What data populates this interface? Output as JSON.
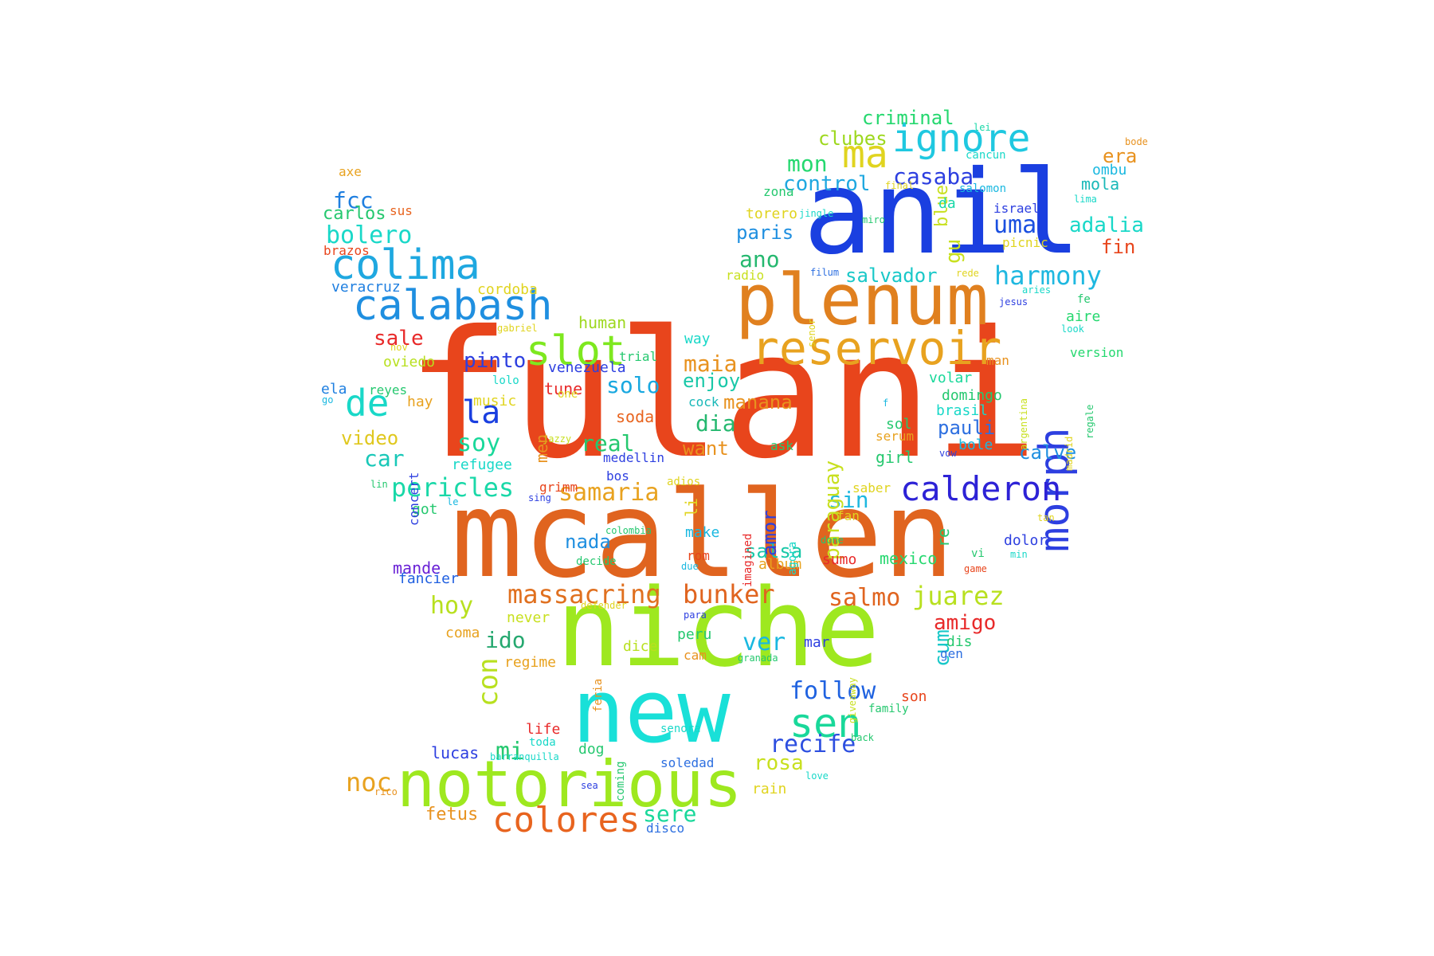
{
  "palette": [
    "#e8451c",
    "#e0641f",
    "#1a3fe0",
    "#19e0d8",
    "#9ee81f",
    "#e8921f",
    "#1fc2e0",
    "#2d22d6",
    "#25d86f",
    "#e0c81f",
    "#e82a2a",
    "#8c1fe0"
  ],
  "words": [
    {
      "text": "fulani",
      "color": "#e8451c"
    },
    {
      "text": "mcallen",
      "color": "#e0641f"
    },
    {
      "text": "anil",
      "color": "#1a3fe0"
    },
    {
      "text": "niche",
      "color": "#9ee81f"
    },
    {
      "text": "new",
      "color": "#19e0d8"
    },
    {
      "text": "plenum",
      "color": "#e0801f"
    },
    {
      "text": "notorious",
      "color": "#9ee81f"
    },
    {
      "text": "reservoir",
      "color": "#e8a21f"
    },
    {
      "text": "calabash",
      "color": "#1f8fe0"
    },
    {
      "text": "colima",
      "color": "#1fa8e0"
    },
    {
      "text": "morph",
      "color": "#2d3fe0"
    },
    {
      "text": "slot",
      "color": "#7ee81f"
    },
    {
      "text": "ignore",
      "color": "#1fc8e0"
    },
    {
      "text": "calderon",
      "color": "#2d22d6"
    },
    {
      "text": "ma",
      "color": "#e0d41f"
    },
    {
      "text": "de",
      "color": "#19d8c8"
    },
    {
      "text": "colores",
      "color": "#e8641f"
    },
    {
      "text": "sen",
      "color": "#19d89a"
    },
    {
      "text": "la",
      "color": "#1a3fe0"
    },
    {
      "text": "harmony",
      "color": "#1fb8e0"
    },
    {
      "text": "massacring",
      "color": "#e0701f"
    },
    {
      "text": "bunker",
      "color": "#e0641f"
    },
    {
      "text": "juarez",
      "color": "#b8e01f"
    },
    {
      "text": "con",
      "color": "#b8e01f"
    },
    {
      "text": "follow",
      "color": "#1f62e0"
    },
    {
      "text": "recife",
      "color": "#2d4fe0"
    },
    {
      "text": "bolero",
      "color": "#19d8c8"
    },
    {
      "text": "pericles",
      "color": "#19d8a8"
    },
    {
      "text": "salmo",
      "color": "#e0641f"
    },
    {
      "text": "uma",
      "color": "#1a4fe0"
    },
    {
      "text": "adalia",
      "color": "#19d8c8"
    },
    {
      "text": "samaria",
      "color": "#e8a21f"
    },
    {
      "text": "soy",
      "color": "#19d89a"
    },
    {
      "text": "ver",
      "color": "#19b8e0"
    },
    {
      "text": "casaba",
      "color": "#2d3fe0"
    },
    {
      "text": "hoy",
      "color": "#b8e01f"
    },
    {
      "text": "noc",
      "color": "#e8a21f"
    },
    {
      "text": "mi",
      "color": "#25c86f"
    },
    {
      "text": "sere",
      "color": "#19d89a"
    },
    {
      "text": "rosa",
      "color": "#c8e01f"
    },
    {
      "text": "amigo",
      "color": "#e82a2a"
    },
    {
      "text": "real",
      "color": "#25c86f"
    },
    {
      "text": "dia",
      "color": "#25b86f"
    },
    {
      "text": "maia",
      "color": "#e8921f"
    },
    {
      "text": "solo",
      "color": "#19a8e0"
    },
    {
      "text": "pinto",
      "color": "#2d3fe0"
    },
    {
      "text": "ido",
      "color": "#25a86f"
    },
    {
      "text": "car",
      "color": "#19c8b8"
    },
    {
      "text": "video",
      "color": "#e0c81f"
    },
    {
      "text": "fcc",
      "color": "#1f7fe0"
    },
    {
      "text": "sale",
      "color": "#e82a2a"
    },
    {
      "text": "fetus",
      "color": "#e8921f"
    },
    {
      "text": "lucas",
      "color": "#2d3fe0"
    },
    {
      "text": "mon",
      "color": "#25d86f"
    },
    {
      "text": "control",
      "color": "#1fa8e0"
    },
    {
      "text": "criminal",
      "color": "#25d86f"
    },
    {
      "text": "clubes",
      "color": "#9ed81f"
    },
    {
      "text": "salvador",
      "color": "#19c8c8"
    },
    {
      "text": "paris",
      "color": "#1f8fe0"
    },
    {
      "text": "ano",
      "color": "#25b86f"
    },
    {
      "text": "enjoy",
      "color": "#19c8a8"
    },
    {
      "text": "manana",
      "color": "#e8921f"
    },
    {
      "text": "want",
      "color": "#e8921f"
    },
    {
      "text": "pauli",
      "color": "#2d6fe0"
    },
    {
      "text": "calve",
      "color": "#1f8fe0"
    },
    {
      "text": "sin",
      "color": "#1fb8e0"
    },
    {
      "text": "salsa",
      "color": "#19c8a8"
    },
    {
      "text": "nada",
      "color": "#1f8fe0"
    },
    {
      "text": "cum",
      "color": "#19c8c8"
    },
    {
      "text": "era",
      "color": "#e8921f"
    },
    {
      "text": "fin",
      "color": "#e8451c"
    },
    {
      "text": "carlos",
      "color": "#25c86f"
    },
    {
      "text": "blue",
      "color": "#c8e01f"
    },
    {
      "text": "gu",
      "color": "#c8e01f"
    },
    {
      "text": "paraguay",
      "color": "#c8e01f"
    },
    {
      "text": "amor",
      "color": "#2d3fe0"
    },
    {
      "text": "human",
      "color": "#9ed81f"
    },
    {
      "text": "mola",
      "color": "#19b8b8"
    },
    {
      "text": "ombu",
      "color": "#19b8e0"
    },
    {
      "text": "aire",
      "color": "#25d86f"
    },
    {
      "text": "girl",
      "color": "#25c86f"
    },
    {
      "text": "sol",
      "color": "#25c86f"
    },
    {
      "text": "brasil",
      "color": "#19d8c8"
    },
    {
      "text": "domingo",
      "color": "#25c86f"
    },
    {
      "text": "volar",
      "color": "#19d89a"
    },
    {
      "text": "dolor",
      "color": "#2d3fe0"
    },
    {
      "text": "mexico",
      "color": "#25d86f"
    },
    {
      "text": "make",
      "color": "#19b8e0"
    },
    {
      "text": "album",
      "color": "#e8a21f"
    },
    {
      "text": "sumo",
      "color": "#e82a2a"
    },
    {
      "text": "mande",
      "color": "#6a22d6"
    },
    {
      "text": "fancier",
      "color": "#1f5fe0"
    },
    {
      "text": "got",
      "color": "#25c86f"
    },
    {
      "text": "refugee",
      "color": "#19d8c8"
    },
    {
      "text": "music",
      "color": "#e0d41f"
    },
    {
      "text": "hay",
      "color": "#e8a21f"
    },
    {
      "text": "venezuela",
      "color": "#2d3fe0"
    },
    {
      "text": "tune",
      "color": "#e82a2a"
    },
    {
      "text": "soda",
      "color": "#e8641f"
    },
    {
      "text": "oviedo",
      "color": "#b8e01f"
    },
    {
      "text": "reyes",
      "color": "#25c86f"
    },
    {
      "text": "ela",
      "color": "#1f7fe0"
    },
    {
      "text": "veracruz",
      "color": "#1f7fe0"
    },
    {
      "text": "brazos",
      "color": "#e8451c"
    },
    {
      "text": "sus",
      "color": "#e8641f"
    },
    {
      "text": "axe",
      "color": "#e8a21f"
    },
    {
      "text": "cordoba",
      "color": "#e0d41f"
    },
    {
      "text": "regime",
      "color": "#e8a21f"
    },
    {
      "text": "never",
      "color": "#c8e01f"
    },
    {
      "text": "coma",
      "color": "#e8a21f"
    },
    {
      "text": "dice",
      "color": "#b8e01f"
    },
    {
      "text": "cam",
      "color": "#e8921f"
    },
    {
      "text": "peru",
      "color": "#25c86f"
    },
    {
      "text": "mar",
      "color": "#2d3fe0"
    },
    {
      "text": "dis",
      "color": "#25c86f"
    },
    {
      "text": "gen",
      "color": "#2d6fe0"
    },
    {
      "text": "son",
      "color": "#e8451c"
    },
    {
      "text": "life",
      "color": "#e82a2a"
    },
    {
      "text": "dog",
      "color": "#25c86f"
    },
    {
      "text": "soledad",
      "color": "#2d6fe0"
    },
    {
      "text": "rain",
      "color": "#e0d41f"
    },
    {
      "text": "disco",
      "color": "#2d6fe0"
    },
    {
      "text": "bole",
      "color": "#19b8e0"
    },
    {
      "text": "torero",
      "color": "#e0d41f"
    },
    {
      "text": "zona",
      "color": "#25c86f"
    },
    {
      "text": "israel",
      "color": "#2d3fe0"
    },
    {
      "text": "picnic",
      "color": "#e0d41f"
    },
    {
      "text": "salomon",
      "color": "#19b8e0"
    },
    {
      "text": "cancun",
      "color": "#19d8c8"
    },
    {
      "text": "da",
      "color": "#19d8a8"
    },
    {
      "text": "radio",
      "color": "#c8e01f"
    },
    {
      "text": "version",
      "color": "#25d86f"
    },
    {
      "text": "way",
      "color": "#19d8c8"
    },
    {
      "text": "trial",
      "color": "#25c86f"
    },
    {
      "text": "cock",
      "color": "#19b8b8"
    },
    {
      "text": "serum",
      "color": "#e8a21f"
    },
    {
      "text": "saber",
      "color": "#e0d41f"
    },
    {
      "text": "fan",
      "color": "#e0d41f"
    },
    {
      "text": "rom",
      "color": "#e8451c"
    },
    {
      "text": "bos",
      "color": "#2d3fe0"
    },
    {
      "text": "medellin",
      "color": "#2d3fe0"
    },
    {
      "text": "ask",
      "color": "#25c86f"
    },
    {
      "text": "grimm",
      "color": "#e8451c"
    },
    {
      "text": "sing",
      "color": "#2d3fe0"
    },
    {
      "text": "lolo",
      "color": "#19d8c8"
    },
    {
      "text": "man",
      "color": "#e8921f"
    },
    {
      "text": "fe",
      "color": "#25c86f"
    },
    {
      "text": "lima",
      "color": "#19d8c8"
    },
    {
      "text": "jesus",
      "color": "#2d3fe0"
    },
    {
      "text": "family",
      "color": "#25c86f"
    },
    {
      "text": "senora",
      "color": "#19d8c8"
    },
    {
      "text": "toda",
      "color": "#19d8c8"
    },
    {
      "text": "barranquilla",
      "color": "#19d8c8"
    },
    {
      "text": "sea",
      "color": "#2d3fe0"
    },
    {
      "text": "rico",
      "color": "#e8921f"
    },
    {
      "text": "granada",
      "color": "#25c86f"
    },
    {
      "text": "decide",
      "color": "#25c86f"
    },
    {
      "text": "colombia",
      "color": "#25c86f"
    },
    {
      "text": "adios",
      "color": "#e0d41f"
    },
    {
      "text": "one",
      "color": "#e0d41f"
    },
    {
      "text": "jazzy",
      "color": "#c8e01f"
    },
    {
      "text": "vi",
      "color": "#25c86f"
    },
    {
      "text": "game",
      "color": "#e8451c"
    },
    {
      "text": "min",
      "color": "#19d8c8"
    },
    {
      "text": "tan",
      "color": "#e0d41f"
    },
    {
      "text": "done",
      "color": "#25c86f"
    },
    {
      "text": "due",
      "color": "#19b8e0"
    },
    {
      "text": "para",
      "color": "#2d3fe0"
    },
    {
      "text": "defender",
      "color": "#e0d41f"
    },
    {
      "text": "back",
      "color": "#25c86f"
    },
    {
      "text": "love",
      "color": "#19d8c8"
    },
    {
      "text": "vow",
      "color": "#2d3fe0"
    },
    {
      "text": "look",
      "color": "#19d8c8"
    },
    {
      "text": "rede",
      "color": "#e0d41f"
    },
    {
      "text": "aries",
      "color": "#19d8c8"
    },
    {
      "text": "miro",
      "color": "#25c86f"
    },
    {
      "text": "final",
      "color": "#e0d41f"
    },
    {
      "text": "lei",
      "color": "#19d8a8"
    },
    {
      "text": "bode",
      "color": "#e8921f"
    },
    {
      "text": "filum",
      "color": "#2d6fe0"
    },
    {
      "text": "jingle",
      "color": "#19d8c8"
    },
    {
      "text": "gabriel",
      "color": "#e0d41f"
    },
    {
      "text": "nov",
      "color": "#e0d41f"
    },
    {
      "text": "lin",
      "color": "#25c86f"
    },
    {
      "text": "le",
      "color": "#19b8e0"
    },
    {
      "text": "go",
      "color": "#19b8e0"
    },
    {
      "text": "f",
      "color": "#19b8e0"
    },
    {
      "text": "men",
      "color": "#e8921f"
    },
    {
      "text": "li",
      "color": "#e0d41f"
    },
    {
      "text": "re",
      "color": "#25c86f"
    },
    {
      "text": "concert",
      "color": "#2d3fe0"
    },
    {
      "text": "imagined",
      "color": "#e82a2a"
    },
    {
      "text": "agora",
      "color": "#19d8c8"
    },
    {
      "text": "feria",
      "color": "#e8921f"
    },
    {
      "text": "giveaway",
      "color": "#c8e01f"
    },
    {
      "text": "coming",
      "color": "#25c86f"
    },
    {
      "text": "senor",
      "color": "#e0d41f"
    },
    {
      "text": "argentina",
      "color": "#c8e01f"
    },
    {
      "text": "madrid",
      "color": "#e0d41f"
    },
    {
      "text": "regale",
      "color": "#25c86f"
    }
  ]
}
